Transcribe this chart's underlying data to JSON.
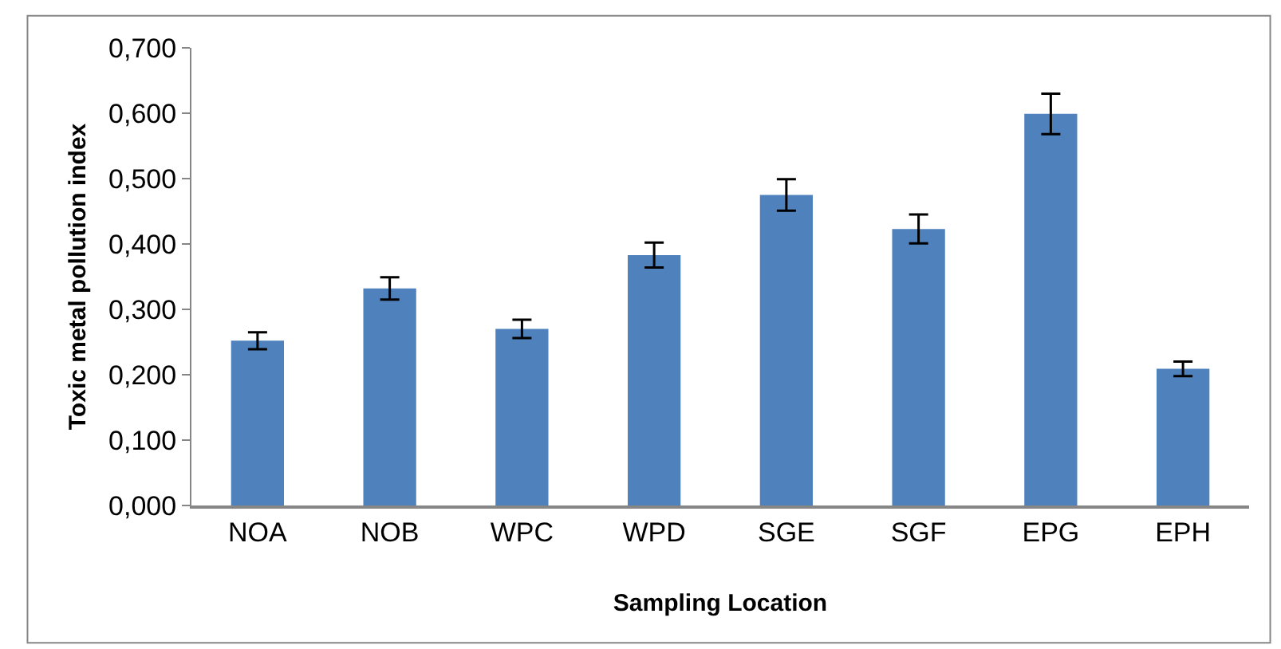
{
  "chart_data": {
    "type": "bar",
    "xlabel": "Sampling Location",
    "ylabel": "Toxic metal pollution index",
    "categories": [
      "NOA",
      "NOB",
      "WPC",
      "WPD",
      "SGE",
      "SGF",
      "EPG",
      "EPH"
    ],
    "values": [
      0.252,
      0.332,
      0.27,
      0.383,
      0.475,
      0.423,
      0.599,
      0.209
    ],
    "errors": [
      0.013,
      0.017,
      0.014,
      0.019,
      0.024,
      0.022,
      0.031,
      0.011
    ],
    "color": "#4f81bd",
    "ylim": [
      0,
      0.7
    ],
    "yticks": [
      {
        "value": 0,
        "label": "0,000"
      },
      {
        "value": 0.1,
        "label": "0,100"
      },
      {
        "value": 0.2,
        "label": "0,200"
      },
      {
        "value": 0.3,
        "label": "0,300"
      },
      {
        "value": 0.4,
        "label": "0,400"
      },
      {
        "value": 0.5,
        "label": "0,500"
      },
      {
        "value": 0.6,
        "label": "0,600"
      },
      {
        "value": 0.7,
        "label": "0,700"
      }
    ],
    "legend": false
  }
}
